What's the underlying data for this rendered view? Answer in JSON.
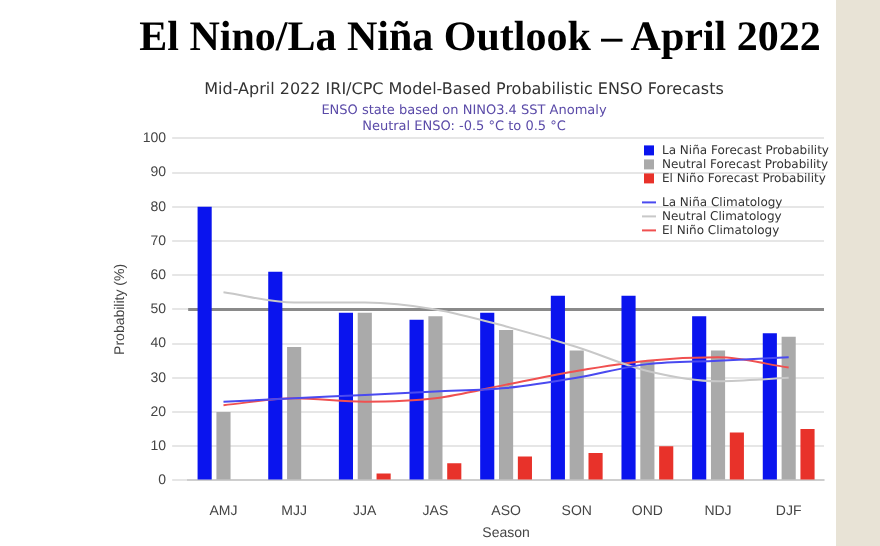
{
  "chart_data": {
    "type": "bar",
    "title": "El Nino/La Niña Outlook – April 2022",
    "subtitle": "Mid-April 2022 IRI/CPC Model-Based Probabilistic ENSO Forecasts",
    "annotations": [
      "ENSO state based on NINO3.4 SST Anomaly",
      "Neutral ENSO: -0.5 °C to 0.5 °C"
    ],
    "xlabel": "Season",
    "ylabel": "Probability (%)",
    "categories": [
      "AMJ",
      "MJJ",
      "JJA",
      "JAS",
      "ASO",
      "SON",
      "OND",
      "NDJ",
      "DJF"
    ],
    "series": [
      {
        "name": "La Niña Forecast Probability",
        "color": "#0a14ee",
        "values": [
          80,
          61,
          49,
          47,
          49,
          54,
          54,
          48,
          43
        ]
      },
      {
        "name": "Neutral Forecast Probability",
        "color": "#aaaaaa",
        "values": [
          20,
          39,
          49,
          48,
          44,
          38,
          35,
          38,
          42
        ]
      },
      {
        "name": "El Niño Forecast Probability",
        "color": "#e8322a",
        "values": [
          0,
          0,
          2,
          5,
          7,
          8,
          10,
          14,
          15
        ]
      },
      {
        "name": "La Niña Climatology",
        "type": "line",
        "color": "#4a4af0",
        "values": [
          23,
          24,
          25,
          26,
          27,
          30,
          34,
          35,
          36
        ]
      },
      {
        "name": "Neutral Climatology",
        "type": "line",
        "color": "#c8c8c8",
        "values": [
          55,
          52,
          52,
          50,
          45,
          39,
          32,
          29,
          30
        ]
      },
      {
        "name": "El Niño Climatology",
        "type": "line",
        "color": "#f05050",
        "values": [
          22,
          24,
          23,
          24,
          28,
          32,
          35,
          36,
          33
        ]
      }
    ],
    "ylim": [
      0,
      100
    ],
    "yticks": [
      0,
      10,
      20,
      30,
      40,
      50,
      60,
      70,
      80,
      90,
      100
    ],
    "grid": "y",
    "legend": "top right",
    "ref_lines": [
      {
        "axis": "y",
        "value": 50,
        "color": "#8a8a8a"
      }
    ]
  }
}
